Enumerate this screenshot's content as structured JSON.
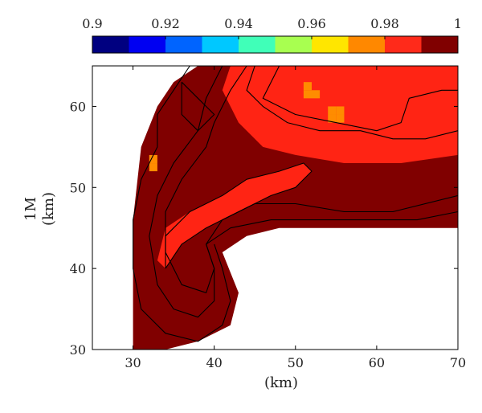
{
  "chart_data": {
    "type": "heatmap",
    "title": "",
    "xlabel": "(km)",
    "ylabel_line1": "1M",
    "ylabel_line2": "(km)",
    "xlim": [
      25,
      70
    ],
    "ylim": [
      30,
      65
    ],
    "xticks": [
      "30",
      "40",
      "50",
      "60",
      "70"
    ],
    "yticks": [
      "30",
      "40",
      "50",
      "60"
    ],
    "colorbar": {
      "range": [
        0.9,
        1.0
      ],
      "ticks": [
        "0.9",
        "0.92",
        "0.94",
        "0.96",
        "0.98",
        "1"
      ],
      "colors": [
        "#000080",
        "#0000f2",
        "#0064ff",
        "#00c8ff",
        "#40ffb8",
        "#a8ff50",
        "#ffe600",
        "#ff8800",
        "#ff2a1a",
        "#800000"
      ]
    },
    "value_colors": {
      "dark_red": "#800000",
      "red": "#ff2414",
      "orange": "#ff8c00"
    },
    "regions": {
      "dark_red_polygon_value": 1.0,
      "dark_red_polygon": [
        [
          30,
          30
        ],
        [
          30,
          46
        ],
        [
          31,
          55
        ],
        [
          33,
          60
        ],
        [
          35,
          63
        ],
        [
          38,
          65
        ],
        [
          70,
          65
        ],
        [
          70,
          45
        ],
        [
          48,
          45
        ],
        [
          44,
          44
        ],
        [
          41,
          42
        ],
        [
          43,
          37
        ],
        [
          42,
          33
        ],
        [
          38,
          31
        ],
        [
          34,
          30
        ]
      ],
      "upper_red_value": 0.985,
      "upper_red_polygon": [
        [
          42,
          65
        ],
        [
          70,
          65
        ],
        [
          70,
          54
        ],
        [
          63,
          53
        ],
        [
          56,
          53
        ],
        [
          50,
          54
        ],
        [
          46,
          55
        ],
        [
          43,
          58
        ],
        [
          41,
          62
        ]
      ],
      "lower_red_value": 0.985,
      "lower_red_polygon": [
        [
          33,
          41
        ],
        [
          34,
          45
        ],
        [
          37,
          47
        ],
        [
          41,
          49
        ],
        [
          44,
          51
        ],
        [
          48,
          52
        ],
        [
          51,
          53
        ],
        [
          52,
          52
        ],
        [
          50,
          50
        ],
        [
          47,
          49
        ],
        [
          43,
          47
        ],
        [
          39,
          45
        ],
        [
          36,
          43
        ],
        [
          34,
          40
        ]
      ],
      "orange_cells_value": 0.97,
      "orange_cells": [
        [
          51,
          61
        ],
        [
          52,
          61
        ],
        [
          51,
          62
        ],
        [
          54,
          59
        ],
        [
          55,
          59
        ],
        [
          54,
          58
        ],
        [
          55,
          58
        ],
        [
          32,
          52
        ],
        [
          32,
          53
        ]
      ]
    },
    "contours": [
      [
        [
          37,
          65
        ],
        [
          35,
          62
        ],
        [
          33,
          59
        ],
        [
          33,
          55
        ],
        [
          31,
          51
        ],
        [
          30,
          46
        ],
        [
          30,
          40
        ],
        [
          31,
          35
        ],
        [
          34,
          32
        ],
        [
          38,
          31
        ],
        [
          41,
          33
        ],
        [
          42,
          36
        ],
        [
          41,
          40
        ],
        [
          40,
          43
        ]
      ],
      [
        [
          41,
          65
        ],
        [
          39,
          61
        ],
        [
          38,
          57
        ],
        [
          35,
          53
        ],
        [
          33,
          49
        ],
        [
          32,
          44
        ],
        [
          33,
          38
        ],
        [
          35,
          35
        ],
        [
          38,
          34
        ],
        [
          40,
          36
        ],
        [
          40,
          40
        ],
        [
          39,
          43
        ],
        [
          41,
          46
        ],
        [
          45,
          48
        ],
        [
          50,
          48
        ],
        [
          56,
          47
        ],
        [
          62,
          47
        ],
        [
          70,
          49
        ]
      ],
      [
        [
          44,
          65
        ],
        [
          42,
          62
        ],
        [
          40,
          58
        ],
        [
          39,
          55
        ],
        [
          36,
          51
        ],
        [
          34,
          47
        ],
        [
          34,
          42
        ],
        [
          36,
          38
        ],
        [
          39,
          37
        ],
        [
          40,
          40
        ],
        [
          39,
          43
        ],
        [
          42,
          45
        ],
        [
          47,
          46
        ],
        [
          55,
          46
        ],
        [
          65,
          46
        ],
        [
          70,
          47
        ]
      ],
      [
        [
          34,
          40
        ],
        [
          34,
          44
        ],
        [
          37,
          47
        ],
        [
          41,
          49
        ],
        [
          44,
          51
        ],
        [
          48,
          52
        ],
        [
          51,
          53
        ],
        [
          52,
          52
        ],
        [
          50,
          50
        ],
        [
          47,
          49
        ],
        [
          43,
          47
        ],
        [
          39,
          45
        ],
        [
          36,
          43
        ],
        [
          34,
          40
        ]
      ],
      [
        [
          45,
          65
        ],
        [
          44,
          62
        ],
        [
          46,
          60
        ],
        [
          49,
          58
        ],
        [
          53,
          57
        ],
        [
          58,
          57
        ],
        [
          62,
          56
        ],
        [
          66,
          56
        ],
        [
          70,
          57
        ]
      ],
      [
        [
          48,
          65
        ],
        [
          46,
          61
        ],
        [
          50,
          59
        ],
        [
          55,
          58
        ],
        [
          60,
          57
        ],
        [
          63,
          58
        ],
        [
          64,
          61
        ],
        [
          68,
          62
        ],
        [
          70,
          62
        ]
      ],
      [
        [
          36,
          63
        ],
        [
          38,
          61
        ],
        [
          40,
          59
        ],
        [
          38,
          57
        ],
        [
          36,
          59
        ],
        [
          36,
          63
        ]
      ]
    ]
  }
}
